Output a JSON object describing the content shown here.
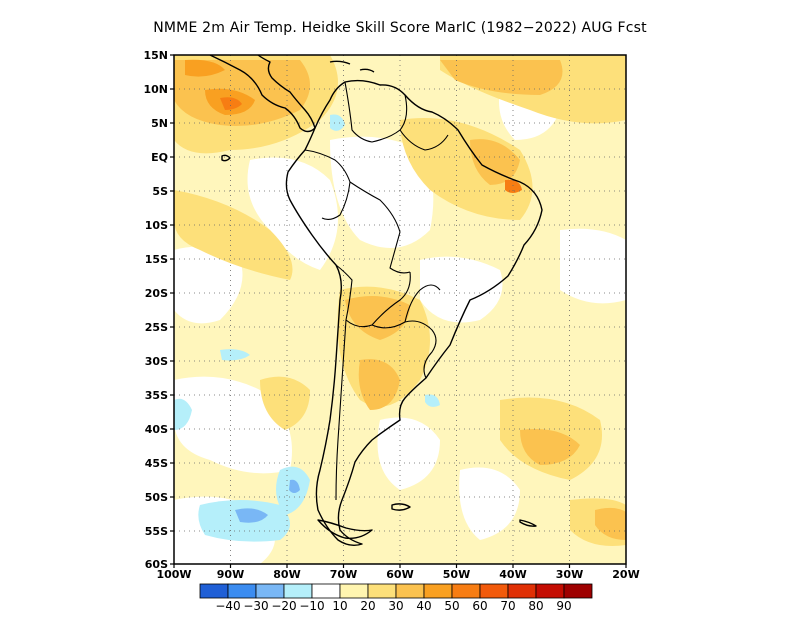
{
  "title": "NMME  2m Air Temp. Heidke Skill Score MarIC (1982−2022) AUG Fcst",
  "lat_labels": [
    "15N",
    "10N",
    "5N",
    "EQ",
    "5S",
    "10S",
    "15S",
    "20S",
    "25S",
    "30S",
    "35S",
    "40S",
    "45S",
    "50S",
    "55S",
    "60S"
  ],
  "lon_labels": [
    "100W",
    "90W",
    "80W",
    "70W",
    "60W",
    "50W",
    "40W",
    "30W",
    "20W"
  ],
  "colorbar": {
    "bin_colors": [
      "#1f5fd6",
      "#3b8cf0",
      "#79b7f5",
      "#b5effa",
      "#ffffff",
      "#fff5b0",
      "#fde07a",
      "#fbc24f",
      "#f9a021",
      "#f77d13",
      "#f25a0b",
      "#e03005",
      "#c40d02",
      "#9e0000"
    ],
    "labels": [
      "−40",
      "−30",
      "−20",
      "−10",
      "10",
      "20",
      "30",
      "40",
      "50",
      "60",
      "70",
      "80",
      "90"
    ]
  },
  "map": {
    "lat_range": [
      "15N",
      "60S"
    ],
    "lon_range": [
      "100W",
      "20W"
    ],
    "grid": "dotted",
    "field_colors": {
      "light": "#fff5b0",
      "medium": "#fde07a",
      "strong": "#fbc24f",
      "orange": "#f9a021",
      "deep": "#f77d13",
      "neg_weak": "#b5effa",
      "neg_mid": "#79b7f5"
    }
  }
}
